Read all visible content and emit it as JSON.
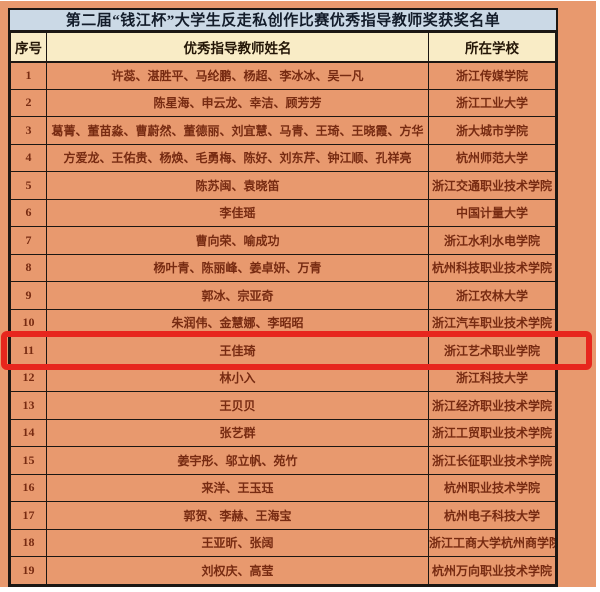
{
  "title": "第二届“钱江杯”大学生反走私创作比赛优秀指导教师奖获奖名单",
  "colors": {
    "background": "#E8996E",
    "title_band": "#CBD9E6",
    "header_bg": "#F9ECC6",
    "border": "#1C1713",
    "body_text": "#772B12",
    "header_text": "#241607",
    "title_text": "#131C2A",
    "highlight": "#E7261D"
  },
  "table": {
    "headers": [
      "序号",
      "优秀指导教师姓名",
      "所在学校"
    ],
    "highlighted_row_no": "11",
    "rows": [
      {
        "no": "1",
        "teachers": "许蕊、湛胜平、马纶鹏、杨超、李冰冰、吴一凡",
        "school": "浙江传媒学院",
        "highlighted": false
      },
      {
        "no": "2",
        "teachers": "陈星海、申云龙、幸洁、顾芳芳",
        "school": "浙江工业大学",
        "highlighted": false
      },
      {
        "no": "3",
        "teachers": "葛菁、董苗淼、曹蔚然、董德丽、刘宜慧、马青、王琦、王晓霞、方华",
        "school": "浙大城市学院",
        "highlighted": false
      },
      {
        "no": "4",
        "teachers": "方爱龙、王佑贵、杨焕、毛勇梅、陈好、刘东芹、钟江顺、孔祥亮",
        "school": "杭州师范大学",
        "highlighted": false
      },
      {
        "no": "5",
        "teachers": "陈苏闽、袁晓笛",
        "school": "浙江交通职业技术学院",
        "highlighted": false
      },
      {
        "no": "6",
        "teachers": "李佳瑶",
        "school": "中国计量大学",
        "highlighted": false
      },
      {
        "no": "7",
        "teachers": "曹向荣、喻成功",
        "school": "浙江水利水电学院",
        "highlighted": false
      },
      {
        "no": "8",
        "teachers": "杨叶青、陈丽峰、姜卓妍、万青",
        "school": "杭州科技职业技术学院",
        "highlighted": false
      },
      {
        "no": "9",
        "teachers": "郭冰、宗亚奇",
        "school": "浙江农林大学",
        "highlighted": false
      },
      {
        "no": "10",
        "teachers": "朱润伟、金慧娜、李昭昭",
        "school": "浙江汽车职业技术学院",
        "highlighted": false
      },
      {
        "no": "11",
        "teachers": "王佳琦",
        "school": "浙江艺术职业学院",
        "highlighted": true
      },
      {
        "no": "12",
        "teachers": "林小入",
        "school": "浙江科技大学",
        "highlighted": false
      },
      {
        "no": "13",
        "teachers": "王贝贝",
        "school": "浙江经济职业技术学院",
        "highlighted": false
      },
      {
        "no": "14",
        "teachers": "张艺群",
        "school": "浙江工贸职业技术学院",
        "highlighted": false
      },
      {
        "no": "15",
        "teachers": "姜宇彤、邬立帆、苑竹",
        "school": "浙江长征职业技术学院",
        "highlighted": false
      },
      {
        "no": "16",
        "teachers": "来洋、王玉珏",
        "school": "杭州职业技术学院",
        "highlighted": false
      },
      {
        "no": "17",
        "teachers": "郭贺、李赫、王海宝",
        "school": "杭州电子科技大学",
        "highlighted": false
      },
      {
        "no": "18",
        "teachers": "王亚昕、张阔",
        "school": "浙江工商大学杭州商学院",
        "highlighted": false
      },
      {
        "no": "19",
        "teachers": "刘权庆、高莹",
        "school": "杭州万向职业技术学院",
        "highlighted": false
      }
    ]
  }
}
